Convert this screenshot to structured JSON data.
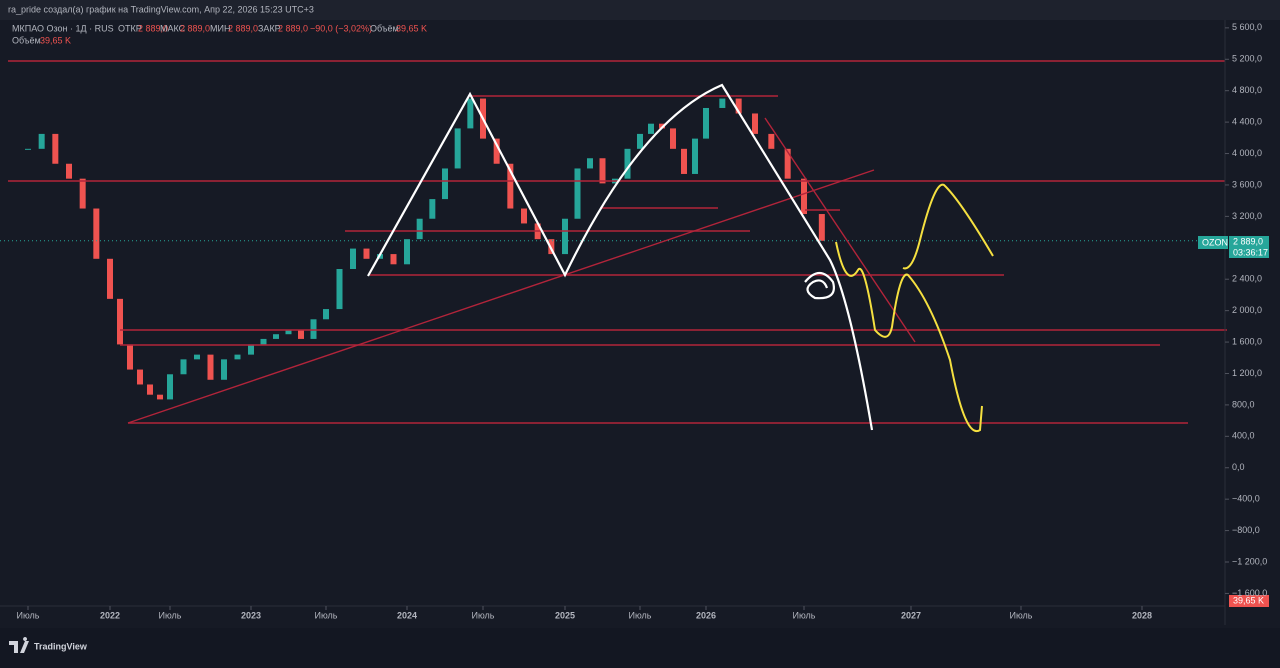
{
  "header": {
    "caption": "ra_pride создал(а) график на TradingView.com, Апр 22, 2026 15:23 UTC+3"
  },
  "legend": {
    "symbol": "МКПАО Озон · 1Д · RUS",
    "open_label": "ОТКР",
    "open": "2 889,0",
    "high_label": "МАКС",
    "high": "2 889,0",
    "low_label": "МИН",
    "low": "2 889,0",
    "close_label": "ЗАКР",
    "close": "2 889,0",
    "change": "−90,0 (−3,02%)",
    "volume_label": "Объём",
    "volume": "39,65 K"
  },
  "price_badge": {
    "symbol": "OZON",
    "price": "2 889,0",
    "timer": "03:36:17"
  },
  "volume_badge": "39,65 K",
  "footer": {
    "logo": "TradingView"
  },
  "chart_data": {
    "type": "candlestick",
    "color_up": "#26a69a",
    "color_down": "#ef5350",
    "x": [
      "2021-07",
      "2021-08",
      "2021-09",
      "2021-10",
      "2021-11",
      "2021-12",
      "2022-01",
      "2022-02",
      "2022-03",
      "2022-04",
      "2022-05",
      "2022-06",
      "2022-07",
      "2022-08",
      "2022-09",
      "2022-10",
      "2022-11",
      "2022-12",
      "2023-01",
      "2023-02",
      "2023-03",
      "2023-04",
      "2023-05",
      "2023-06",
      "2023-07",
      "2023-08",
      "2023-09",
      "2023-10",
      "2023-11",
      "2023-12",
      "2024-01",
      "2024-02",
      "2024-03",
      "2024-04",
      "2024-05",
      "2024-06",
      "2024-07",
      "2024-08",
      "2024-09",
      "2024-10",
      "2024-11",
      "2024-12",
      "2025-01",
      "2025-02",
      "2025-03",
      "2025-04",
      "2025-05",
      "2025-06",
      "2025-07",
      "2025-08",
      "2025-09",
      "2025-10",
      "2025-11",
      "2025-12",
      "2026-01",
      "2026-02",
      "2026-03",
      "2026-04",
      "2026-05",
      "2026-06",
      "2026-07",
      "2026-08"
    ],
    "values": [
      4060,
      4250,
      3870,
      3680,
      3300,
      2660,
      2150,
      1570,
      1250,
      1060,
      930,
      870,
      1190,
      1380,
      1440,
      1120,
      1380,
      1440,
      1570,
      1640,
      1700,
      1760,
      1640,
      1890,
      2020,
      2530,
      2790,
      2660,
      2720,
      2590,
      2910,
      3170,
      3420,
      3810,
      4320,
      4700,
      4190,
      3870,
      3300,
      3110,
      2910,
      2720,
      3170,
      3810,
      3940,
      3620,
      3680,
      4060,
      4250,
      4380,
      4320,
      4060,
      3740,
      4190,
      4580,
      4700,
      4510,
      4250,
      4060,
      3680,
      3230,
      2889
    ],
    "ylim": [
      -1760,
      5700
    ],
    "yticks": [
      {
        "value": 5600,
        "label": "5 600,0"
      },
      {
        "value": 5200,
        "label": "5 200,0"
      },
      {
        "value": 4800,
        "label": "4 800,0"
      },
      {
        "value": 4400,
        "label": "4 400,0"
      },
      {
        "value": 4000,
        "label": "4 000,0"
      },
      {
        "value": 3600,
        "label": "3 600,0"
      },
      {
        "value": 3200,
        "label": "3 200,0"
      },
      {
        "value": 2400,
        "label": "2 400,0"
      },
      {
        "value": 2000,
        "label": "2 000,0"
      },
      {
        "value": 1600,
        "label": "1 600,0"
      },
      {
        "value": 1200,
        "label": "1 200,0"
      },
      {
        "value": 800,
        "label": "800,0"
      },
      {
        "value": 400,
        "label": "400,0"
      },
      {
        "value": 0,
        "label": "0,0"
      },
      {
        "value": -400,
        "label": "−400,0"
      },
      {
        "value": -800,
        "label": "−800,0"
      },
      {
        "value": -1200,
        "label": "−1 200,0"
      },
      {
        "value": -1600,
        "label": "−1 600,0"
      }
    ],
    "xticks": [
      {
        "value": "2021-07",
        "label": "Июль"
      },
      {
        "value": "2022-01",
        "label": "2022"
      },
      {
        "value": "2022-07",
        "label": "Июль"
      },
      {
        "value": "2023-01",
        "label": "2023"
      },
      {
        "value": "2023-07",
        "label": "Июль"
      },
      {
        "value": "2024-01",
        "label": "2024"
      },
      {
        "value": "2024-07",
        "label": "Июль"
      },
      {
        "value": "2025-01",
        "label": "2025"
      },
      {
        "value": "2025-07",
        "label": "Июль"
      },
      {
        "value": "2026-01",
        "label": "2026"
      },
      {
        "value": "2026-07",
        "label": "Июль"
      },
      {
        "value": "2027-01",
        "label": "2027"
      },
      {
        "value": "2027-07",
        "label": "Июль"
      },
      {
        "value": "2028-01",
        "label": "2028"
      }
    ]
  }
}
